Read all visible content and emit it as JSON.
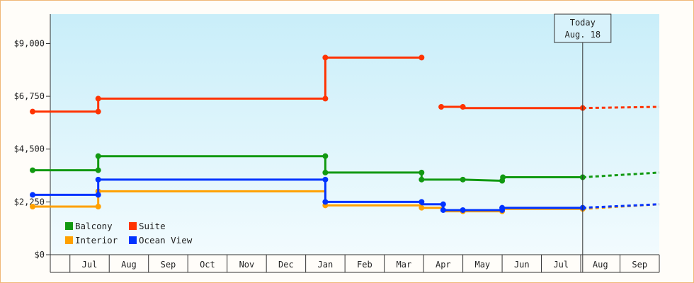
{
  "chart_data": {
    "type": "line",
    "step": true,
    "y_ticks": [
      "$0",
      "$2,250",
      "$4,500",
      "$6,750",
      "$9,000"
    ],
    "ylim": [
      0,
      10250
    ],
    "x_labels": [
      "Jul",
      "Aug",
      "Sep",
      "Oct",
      "Nov",
      "Dec",
      "Jan",
      "Feb",
      "Mar",
      "Apr",
      "May",
      "Jun",
      "Jul",
      "Aug",
      "Sep"
    ],
    "xlim": [
      0,
      15.5
    ],
    "grid": "none",
    "legend_position": "bottom-left",
    "today": {
      "line1": "Today",
      "line2": "Aug. 18",
      "x": 13.55
    },
    "series": [
      {
        "name": "Balcony",
        "color": "#119911",
        "points": [
          [
            -0.45,
            3600
          ],
          [
            1.22,
            3600
          ],
          [
            1.22,
            4200
          ],
          [
            7.0,
            4200
          ],
          [
            7.0,
            3500
          ],
          [
            9.45,
            3500
          ],
          [
            9.45,
            3200
          ],
          [
            10.5,
            3200
          ],
          [
            11.5,
            3150
          ],
          [
            11.52,
            3300
          ],
          [
            13.55,
            3300
          ]
        ],
        "markers": [
          [
            -0.45,
            3600
          ],
          [
            1.22,
            3600
          ],
          [
            1.22,
            4200
          ],
          [
            7.0,
            4200
          ],
          [
            7.0,
            3500
          ],
          [
            9.45,
            3500
          ],
          [
            9.45,
            3200
          ],
          [
            10.5,
            3200
          ],
          [
            11.5,
            3150
          ],
          [
            11.52,
            3300
          ],
          [
            13.55,
            3300
          ]
        ],
        "forecast": [
          [
            13.55,
            3300
          ],
          [
            15.5,
            3500
          ]
        ]
      },
      {
        "name": "Suite",
        "color": "#ff3300",
        "points": [
          [
            -0.45,
            6100
          ],
          [
            1.22,
            6100
          ],
          [
            1.22,
            6650
          ],
          [
            7.0,
            6650
          ],
          [
            7.0,
            8400
          ],
          [
            9.45,
            8400
          ]
        ],
        "points2": [
          [
            9.95,
            6300
          ],
          [
            10.5,
            6300
          ],
          [
            10.5,
            6250
          ],
          [
            13.55,
            6250
          ]
        ],
        "markers": [
          [
            -0.45,
            6100
          ],
          [
            1.22,
            6100
          ],
          [
            1.22,
            6650
          ],
          [
            7.0,
            6650
          ],
          [
            7.0,
            8400
          ],
          [
            9.45,
            8400
          ],
          [
            9.95,
            6300
          ],
          [
            10.5,
            6300
          ],
          [
            13.55,
            6250
          ]
        ],
        "forecast": [
          [
            13.55,
            6250
          ],
          [
            15.5,
            6300
          ]
        ]
      },
      {
        "name": "Interior",
        "color": "#ffa000",
        "points": [
          [
            -0.45,
            2050
          ],
          [
            1.22,
            2050
          ],
          [
            1.22,
            2700
          ],
          [
            7.0,
            2700
          ],
          [
            7.0,
            2100
          ],
          [
            9.45,
            2100
          ],
          [
            9.45,
            2000
          ],
          [
            10.0,
            2000
          ],
          [
            10.0,
            1850
          ],
          [
            11.5,
            1850
          ],
          [
            11.5,
            1950
          ],
          [
            13.55,
            1950
          ]
        ],
        "markers": [
          [
            -0.45,
            2050
          ],
          [
            1.22,
            2050
          ],
          [
            1.22,
            2700
          ],
          [
            7.0,
            2100
          ],
          [
            9.45,
            2000
          ],
          [
            10.5,
            1850
          ],
          [
            11.5,
            1850
          ],
          [
            13.55,
            1950
          ]
        ],
        "forecast": [
          [
            13.55,
            1950
          ],
          [
            15.5,
            2150
          ]
        ]
      },
      {
        "name": "Ocean View",
        "color": "#0033ff",
        "points": [
          [
            -0.45,
            2550
          ],
          [
            1.22,
            2550
          ],
          [
            1.22,
            3200
          ],
          [
            7.0,
            3200
          ],
          [
            7.0,
            2250
          ],
          [
            9.45,
            2250
          ],
          [
            9.45,
            2150
          ],
          [
            10.0,
            2150
          ],
          [
            10.0,
            1900
          ],
          [
            10.5,
            1900
          ],
          [
            11.5,
            1900
          ],
          [
            11.5,
            2000
          ],
          [
            13.55,
            2000
          ]
        ],
        "markers": [
          [
            -0.45,
            2550
          ],
          [
            1.22,
            2550
          ],
          [
            1.22,
            3200
          ],
          [
            7.0,
            3200
          ],
          [
            7.0,
            2250
          ],
          [
            9.45,
            2250
          ],
          [
            10.0,
            2150
          ],
          [
            10.0,
            1900
          ],
          [
            10.5,
            1900
          ],
          [
            11.5,
            1900
          ],
          [
            11.5,
            2000
          ],
          [
            13.55,
            2000
          ]
        ],
        "forecast": [
          [
            13.55,
            2000
          ],
          [
            15.5,
            2150
          ]
        ]
      }
    ]
  }
}
